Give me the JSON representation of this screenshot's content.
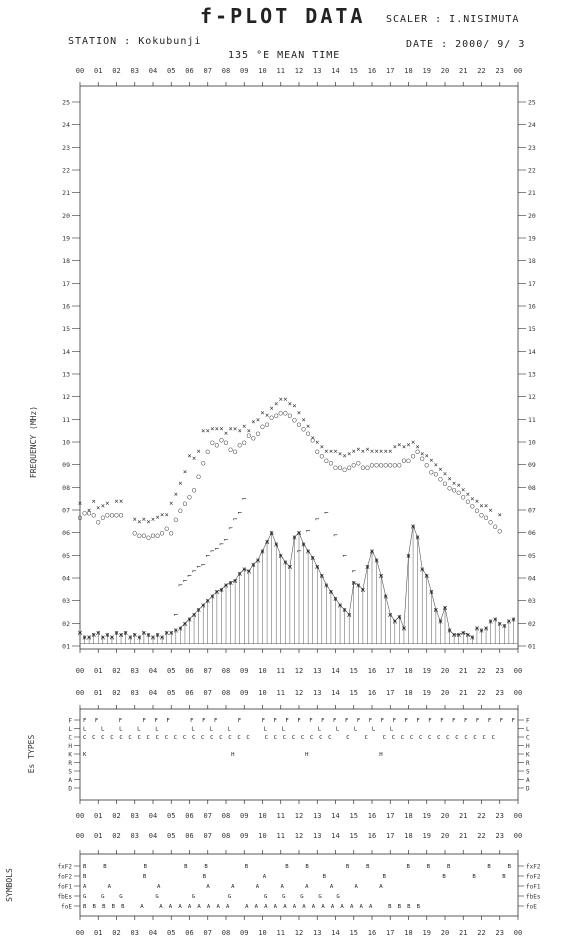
{
  "header": {
    "title": "f-PLOT DATA",
    "scaler": "SCALER : I.NISIMUTA",
    "station": "STATION : Kokubunji",
    "date": "DATE : 2000/ 9/ 3",
    "time_label": "135 °E MEAN TIME"
  },
  "hours": [
    "00",
    "01",
    "02",
    "03",
    "04",
    "05",
    "06",
    "07",
    "08",
    "09",
    "10",
    "11",
    "12",
    "13",
    "14",
    "15",
    "16",
    "17",
    "18",
    "19",
    "20",
    "21",
    "22",
    "23",
    "00"
  ],
  "chart_data": [
    {
      "type": "scatter",
      "ylabel": "FREQUENCY (MHz)",
      "y_ticks": [
        "01",
        "02",
        "03",
        "04",
        "05",
        "06",
        "07",
        "08",
        "09",
        "10",
        "11",
        "12",
        "13",
        "14",
        "15",
        "16",
        "17",
        "18",
        "19",
        "20",
        "21",
        "22",
        "23",
        "24",
        "25"
      ],
      "ylim": [
        1,
        25
      ],
      "xlim": [
        0,
        24
      ],
      "grid": false,
      "series": [
        {
          "symbol": "×",
          "x": [
            0,
            0.5,
            0.75,
            1,
            1.25,
            1.5,
            2,
            2.25,
            3,
            3.25,
            3.5,
            3.75,
            4,
            4.25,
            4.5,
            4.75,
            5,
            5.25,
            5.5,
            5.75,
            6,
            6.25,
            6.5,
            6.75,
            7,
            7.25,
            7.5,
            7.75,
            8,
            8.25,
            8.5,
            8.75,
            9,
            9.25,
            9.5,
            9.75,
            10,
            10.25,
            10.5,
            10.75,
            11,
            11.25,
            11.5,
            11.75,
            12,
            12.25,
            12.5,
            12.75,
            13,
            13.25,
            13.5,
            13.75,
            14,
            14.25,
            14.5,
            14.75,
            15,
            15.25,
            15.5,
            15.75,
            16,
            16.25,
            16.5,
            16.75,
            17,
            17.25,
            17.5,
            17.75,
            18,
            18.25,
            18.5,
            18.75,
            19,
            19.25,
            19.5,
            19.75,
            20,
            20.25,
            20.5,
            20.75,
            21,
            21.25,
            21.5,
            21.75,
            22,
            22.25,
            22.5,
            23
          ],
          "y": [
            7.3,
            7.0,
            7.4,
            7.1,
            7.2,
            7.3,
            7.4,
            7.4,
            6.6,
            6.5,
            6.6,
            6.5,
            6.6,
            6.7,
            6.8,
            6.8,
            7.3,
            7.7,
            8.2,
            8.7,
            9.4,
            9.3,
            9.6,
            10.5,
            10.5,
            10.6,
            10.6,
            10.6,
            10.4,
            10.6,
            10.6,
            10.5,
            10.7,
            10.5,
            10.9,
            11.0,
            11.3,
            11.2,
            11.5,
            11.7,
            11.9,
            11.9,
            11.7,
            11.6,
            11.3,
            11.0,
            10.7,
            10.2,
            10.0,
            9.8,
            9.6,
            9.6,
            9.6,
            9.5,
            9.4,
            9.5,
            9.6,
            9.7,
            9.6,
            9.7,
            9.6,
            9.6,
            9.6,
            9.6,
            9.6,
            9.8,
            9.9,
            9.8,
            9.9,
            10.0,
            9.8,
            9.5,
            9.4,
            9.2,
            9.0,
            8.8,
            8.6,
            8.4,
            8.2,
            8.1,
            7.9,
            7.7,
            7.5,
            7.4,
            7.2,
            7.2,
            7.0,
            6.8
          ]
        },
        {
          "symbol": "○",
          "x": [
            0,
            0.25,
            0.5,
            0.75,
            1,
            1.25,
            1.5,
            1.75,
            2,
            2.25,
            3,
            3.25,
            3.5,
            3.75,
            4,
            4.25,
            4.5,
            4.75,
            5,
            5.25,
            5.5,
            5.75,
            6,
            6.25,
            6.5,
            6.75,
            7,
            7.25,
            7.5,
            7.75,
            8,
            8.25,
            8.5,
            8.75,
            9,
            9.25,
            9.5,
            9.75,
            10,
            10.25,
            10.5,
            10.75,
            11,
            11.25,
            11.5,
            11.75,
            12,
            12.25,
            12.5,
            12.75,
            13,
            13.25,
            13.5,
            13.75,
            14,
            14.25,
            14.5,
            14.75,
            15,
            15.25,
            15.5,
            15.75,
            16,
            16.25,
            16.5,
            16.75,
            17,
            17.25,
            17.5,
            17.75,
            18,
            18.25,
            18.5,
            18.75,
            19,
            19.25,
            19.5,
            19.75,
            20,
            20.25,
            20.5,
            20.75,
            21,
            21.25,
            21.5,
            21.75,
            22,
            22.25,
            22.5,
            22.75,
            23
          ],
          "y": [
            6.7,
            6.9,
            6.9,
            6.8,
            6.5,
            6.7,
            6.8,
            6.8,
            6.8,
            6.8,
            6.0,
            5.9,
            5.9,
            5.8,
            5.9,
            5.9,
            6.0,
            6.2,
            6.0,
            6.6,
            7.0,
            7.3,
            7.6,
            7.9,
            8.5,
            9.1,
            9.6,
            10.0,
            9.9,
            10.1,
            10.0,
            9.7,
            9.6,
            9.9,
            10.0,
            10.3,
            10.2,
            10.4,
            10.7,
            10.8,
            11.1,
            11.2,
            11.3,
            11.3,
            11.2,
            11.0,
            10.8,
            10.6,
            10.4,
            10.1,
            9.6,
            9.4,
            9.2,
            9.1,
            8.9,
            8.9,
            8.8,
            8.9,
            9.0,
            9.1,
            8.9,
            8.9,
            9.0,
            9.0,
            9.0,
            9.0,
            9.0,
            9.0,
            9.0,
            9.2,
            9.2,
            9.4,
            9.6,
            9.3,
            9.0,
            8.7,
            8.6,
            8.4,
            8.2,
            8.0,
            7.9,
            7.8,
            7.6,
            7.4,
            7.2,
            7.0,
            6.8,
            6.7,
            6.5,
            6.3,
            6.1
          ]
        },
        {
          "symbol": "⌐",
          "x": [
            5.25,
            5.5,
            5.75,
            6,
            6.25,
            6.5,
            6.75,
            7,
            7.25,
            7.5,
            7.75,
            8,
            8.25,
            8.5,
            8.75,
            9,
            12,
            12.5,
            13,
            13.5,
            14,
            14.5,
            15
          ],
          "y": [
            2.4,
            3.7,
            3.9,
            4.1,
            4.3,
            4.5,
            4.6,
            5.0,
            5.2,
            5.3,
            5.5,
            5.7,
            6.2,
            6.6,
            6.9,
            7.5,
            5.2,
            6.1,
            6.6,
            6.9,
            5.9,
            5.0,
            4.3
          ]
        },
        {
          "symbol": "ж",
          "x": [
            0,
            0.25,
            0.5,
            0.75,
            1,
            1.25,
            1.5,
            1.75,
            2,
            2.25,
            2.5,
            2.75,
            3,
            3.25,
            3.5,
            3.75,
            4,
            4.25,
            4.5,
            4.75,
            5,
            5.25,
            5.5,
            5.75,
            6,
            6.25,
            6.5,
            6.75,
            7,
            7.25,
            7.5,
            7.75,
            8,
            8.25,
            8.5,
            8.75,
            9,
            9.25,
            9.5,
            9.75,
            10,
            10.25,
            10.5,
            10.75,
            11,
            11.25,
            11.5,
            11.75,
            12,
            12.25,
            12.5,
            12.75,
            13,
            13.25,
            13.5,
            13.75,
            14,
            14.25,
            14.5,
            14.75,
            15,
            15.25,
            15.5,
            15.75,
            16,
            16.25,
            16.5,
            16.75,
            17,
            17.25,
            17.5,
            17.75,
            18,
            18.25,
            18.5,
            18.75,
            19,
            19.25,
            19.5,
            19.75,
            20,
            20.25,
            20.5,
            20.75,
            21,
            21.25,
            21.5,
            21.75,
            22,
            22.25,
            22.5,
            22.75,
            23,
            23.25,
            23.5,
            23.75
          ],
          "y": [
            1.6,
            1.4,
            1.4,
            1.5,
            1.6,
            1.4,
            1.5,
            1.4,
            1.6,
            1.5,
            1.6,
            1.4,
            1.5,
            1.4,
            1.6,
            1.5,
            1.4,
            1.5,
            1.4,
            1.6,
            1.6,
            1.7,
            1.8,
            2.0,
            2.2,
            2.4,
            2.6,
            2.8,
            3.0,
            3.2,
            3.4,
            3.5,
            3.7,
            3.8,
            3.9,
            4.2,
            4.4,
            4.3,
            4.6,
            4.8,
            5.2,
            5.6,
            6.0,
            5.5,
            5.0,
            4.7,
            4.5,
            5.8,
            6.0,
            5.5,
            5.2,
            4.9,
            4.5,
            4.1,
            3.7,
            3.4,
            3.1,
            2.8,
            2.6,
            2.4,
            3.8,
            3.7,
            3.5,
            4.5,
            5.2,
            4.8,
            4.1,
            3.2,
            2.4,
            2.1,
            2.3,
            1.8,
            5.0,
            6.3,
            5.8,
            4.4,
            4.1,
            3.4,
            2.6,
            2.1,
            2.7,
            1.7,
            1.5,
            1.5,
            1.6,
            1.5,
            1.4,
            1.8,
            1.7,
            1.8,
            2.1,
            2.2,
            2.0,
            1.9,
            2.1,
            2.2
          ]
        }
      ]
    },
    {
      "type": "scatter",
      "ylabel": "Es TYPES",
      "y_ticks": [
        "F",
        "L",
        "C",
        "H",
        "K",
        "R",
        "S",
        "A",
        "D"
      ],
      "rows": [
        {
          "label": "F",
          "marks": "FF F FFF FFF F                                                FFFFFFFFFFFFFFFFFFFFFF"
        },
        {
          "label": "L",
          "marks": "                  LLLLL          LLL LL              LLLLL"
        },
        {
          "label": "C",
          "marks": "                   CCCCCCCCCCCCCCCCCCC      CCCCCCCC C C        CCCCCCCCCCCCC"
        },
        {
          "label": "H",
          "marks": ""
        },
        {
          "label": "K",
          "marks": "                                            K        HHH"
        },
        {
          "label": "R",
          "marks": ""
        },
        {
          "label": "S",
          "marks": ""
        },
        {
          "label": "A",
          "marks": ""
        },
        {
          "label": "D",
          "marks": ""
        }
      ]
    },
    {
      "type": "scatter",
      "ylabel": "SYMBOLS",
      "y_ticks": [
        "fxF2",
        "foF2",
        "foF1",
        "fbEs",
        "foE"
      ],
      "rows": [
        {
          "label": "fxF2",
          "marks": "BB   B           BB         B                                BB    BB     BBB BB"
        },
        {
          "label": "foF2",
          "marks": "         B    B        B                                     A     B B      BBB"
        },
        {
          "label": "foF1",
          "marks": "                         AA    A                AAAAAAAA"
        },
        {
          "label": "fbEs",
          "marks": "                       GGG         G  G  G GGGGG"
        },
        {
          "label": "foE",
          "marks": "             BBBBB       A AAAAAAAA AAAAAAAAAAAAAA         BBBB"
        }
      ]
    }
  ]
}
